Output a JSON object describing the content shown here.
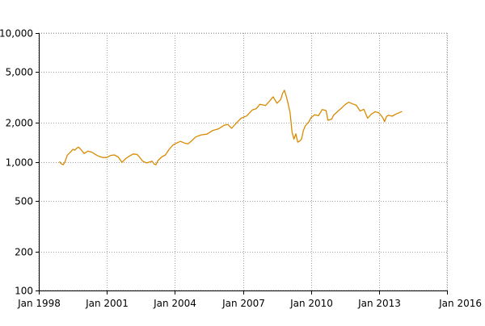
{
  "chart_data": {
    "type": "line",
    "title": "",
    "xlabel": "",
    "ylabel": "",
    "y_scale": "log",
    "grid": true,
    "xlim": [
      "1998-01",
      "2016-01"
    ],
    "ylim": [
      100,
      10000
    ],
    "x_ticks": [
      {
        "date": "1998-01",
        "label": "Jan 1998"
      },
      {
        "date": "2001-01",
        "label": "Jan 2001"
      },
      {
        "date": "2004-01",
        "label": "Jan 2004"
      },
      {
        "date": "2007-01",
        "label": "Jan 2007"
      },
      {
        "date": "2010-01",
        "label": "Jan 2010"
      },
      {
        "date": "2013-01",
        "label": "Jan 2013"
      },
      {
        "date": "2016-01",
        "label": "Jan 2016"
      }
    ],
    "y_ticks": [
      {
        "value": 100,
        "label": "100"
      },
      {
        "value": 200,
        "label": "200"
      },
      {
        "value": 500,
        "label": "500"
      },
      {
        "value": 1000,
        "label": "1,000"
      },
      {
        "value": 2000,
        "label": "2,000"
      },
      {
        "value": 5000,
        "label": "5,000"
      },
      {
        "value": 10000,
        "label": "10,000"
      }
    ],
    "series": [
      {
        "color": "#d98a00",
        "points": [
          [
            "1998-12",
            1000
          ],
          [
            "1999-01",
            960
          ],
          [
            "1999-02",
            950
          ],
          [
            "1999-03",
            1010
          ],
          [
            "1999-04",
            1120
          ],
          [
            "1999-05",
            1160
          ],
          [
            "1999-06",
            1200
          ],
          [
            "1999-07",
            1250
          ],
          [
            "1999-08",
            1230
          ],
          [
            "1999-09",
            1270
          ],
          [
            "1999-10",
            1300
          ],
          [
            "1999-11",
            1260
          ],
          [
            "2000-01",
            1160
          ],
          [
            "2000-03",
            1210
          ],
          [
            "2000-05",
            1190
          ],
          [
            "2000-07",
            1140
          ],
          [
            "2000-09",
            1100
          ],
          [
            "2000-11",
            1080
          ],
          [
            "2001-01",
            1080
          ],
          [
            "2001-03",
            1120
          ],
          [
            "2001-05",
            1130
          ],
          [
            "2001-07",
            1090
          ],
          [
            "2001-09",
            990
          ],
          [
            "2001-11",
            1060
          ],
          [
            "2002-01",
            1110
          ],
          [
            "2002-03",
            1150
          ],
          [
            "2002-05",
            1140
          ],
          [
            "2002-06",
            1100
          ],
          [
            "2002-08",
            1010
          ],
          [
            "2002-10",
            980
          ],
          [
            "2002-12",
            1000
          ],
          [
            "2003-01",
            1010
          ],
          [
            "2003-02",
            960
          ],
          [
            "2003-03",
            950
          ],
          [
            "2003-04",
            1020
          ],
          [
            "2003-06",
            1090
          ],
          [
            "2003-08",
            1130
          ],
          [
            "2003-10",
            1250
          ],
          [
            "2003-12",
            1350
          ],
          [
            "2004-02",
            1400
          ],
          [
            "2004-04",
            1440
          ],
          [
            "2004-06",
            1400
          ],
          [
            "2004-08",
            1380
          ],
          [
            "2004-10",
            1460
          ],
          [
            "2004-12",
            1560
          ],
          [
            "2005-03",
            1620
          ],
          [
            "2005-06",
            1640
          ],
          [
            "2005-09",
            1750
          ],
          [
            "2005-12",
            1800
          ],
          [
            "2006-03",
            1920
          ],
          [
            "2006-05",
            1950
          ],
          [
            "2006-07",
            1820
          ],
          [
            "2006-09",
            1960
          ],
          [
            "2006-12",
            2180
          ],
          [
            "2007-03",
            2270
          ],
          [
            "2007-06",
            2530
          ],
          [
            "2007-08",
            2580
          ],
          [
            "2007-10",
            2800
          ],
          [
            "2008-01",
            2740
          ],
          [
            "2008-03",
            2950
          ],
          [
            "2008-05",
            3200
          ],
          [
            "2008-07",
            2850
          ],
          [
            "2008-09",
            3050
          ],
          [
            "2008-10",
            3400
          ],
          [
            "2008-11",
            3600
          ],
          [
            "2008-12",
            3200
          ],
          [
            "2009-01",
            2800
          ],
          [
            "2009-02",
            2400
          ],
          [
            "2009-03",
            1700
          ],
          [
            "2009-04",
            1500
          ],
          [
            "2009-05",
            1650
          ],
          [
            "2009-06",
            1420
          ],
          [
            "2009-07",
            1450
          ],
          [
            "2009-08",
            1500
          ],
          [
            "2009-09",
            1750
          ],
          [
            "2009-10",
            1900
          ],
          [
            "2009-12",
            2050
          ],
          [
            "2010-01",
            2200
          ],
          [
            "2010-03",
            2320
          ],
          [
            "2010-05",
            2280
          ],
          [
            "2010-07",
            2550
          ],
          [
            "2010-09",
            2500
          ],
          [
            "2010-10",
            2100
          ],
          [
            "2010-12",
            2150
          ],
          [
            "2011-01",
            2300
          ],
          [
            "2011-03",
            2450
          ],
          [
            "2011-05",
            2600
          ],
          [
            "2011-07",
            2780
          ],
          [
            "2011-09",
            2900
          ],
          [
            "2011-11",
            2820
          ],
          [
            "2012-01",
            2750
          ],
          [
            "2012-03",
            2480
          ],
          [
            "2012-05",
            2560
          ],
          [
            "2012-07",
            2180
          ],
          [
            "2012-09",
            2350
          ],
          [
            "2012-11",
            2450
          ],
          [
            "2013-01",
            2400
          ],
          [
            "2013-02",
            2300
          ],
          [
            "2013-03",
            2200
          ],
          [
            "2013-04",
            2050
          ],
          [
            "2013-05",
            2250
          ],
          [
            "2013-06",
            2300
          ],
          [
            "2013-08",
            2260
          ],
          [
            "2013-10",
            2350
          ],
          [
            "2013-12",
            2420
          ],
          [
            "2014-01",
            2450
          ]
        ]
      }
    ]
  }
}
